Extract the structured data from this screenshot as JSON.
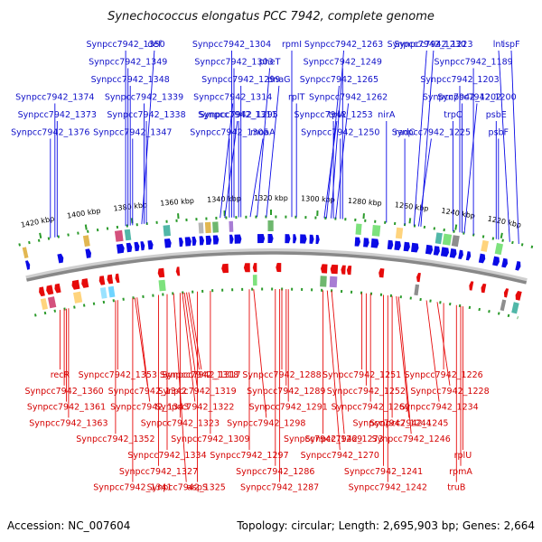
{
  "header": {
    "title": "Synechococcus elongatus PCC 7942, complete genome"
  },
  "footer": {
    "accession": "Accession: NC_007604",
    "summary": "Topology: circular; Length: 2,695,903 bp; Genes: 2,664"
  },
  "colors": {
    "forward": "#0a0ae6",
    "reverse": "#e60a0a",
    "backbone": "#888888",
    "tick_dots": "#2a9a2a"
  },
  "scale": {
    "unit": "kbp",
    "ticks": [
      {
        "pos": 1220,
        "label": "1220 kbp"
      },
      {
        "pos": 1240,
        "label": "1240 kbp"
      },
      {
        "pos": 1260,
        "label": "1260 kbp"
      },
      {
        "pos": 1280,
        "label": "1280 kbp"
      },
      {
        "pos": 1300,
        "label": "1300 kbp"
      },
      {
        "pos": 1320,
        "label": "1320 kbp"
      },
      {
        "pos": 1340,
        "label": "1340 kbp"
      },
      {
        "pos": 1360,
        "label": "1360 kbp"
      },
      {
        "pos": 1380,
        "label": "1380 kbp"
      },
      {
        "pos": 1400,
        "label": "1400 kbp"
      },
      {
        "pos": 1420,
        "label": "1420 kbp"
      }
    ]
  },
  "upper_labels": [
    {
      "text": "Synpcc7942_1350",
      "pos": 1383
    },
    {
      "text": "Synpcc7942_1349",
      "pos": 1382
    },
    {
      "text": "Synpcc7942_1348",
      "pos": 1381
    },
    {
      "text": "Synpcc7942_1339",
      "pos": 1375
    },
    {
      "text": "Synpcc7942_1338",
      "pos": 1374
    },
    {
      "text": "Synpcc7942_1347",
      "pos": 1380
    },
    {
      "text": "def",
      "pos": 1376
    },
    {
      "text": "Synpcc7942_1374",
      "pos": 1414
    },
    {
      "text": "Synpcc7942_1373",
      "pos": 1413
    },
    {
      "text": "Synpcc7942_1376",
      "pos": 1416
    },
    {
      "text": "Synpcc7942_1295",
      "pos": 1334
    },
    {
      "text": "Synpcc7942_1305",
      "pos": 1338
    },
    {
      "text": "Synpcc7942_1304",
      "pos": 1337
    },
    {
      "text": "Synpcc7942_1303",
      "pos": 1336
    },
    {
      "text": "Synpcc7942_1299",
      "pos": 1333
    },
    {
      "text": "Synpcc7942_1314",
      "pos": 1342
    },
    {
      "text": "Synpcc7942_1311",
      "pos": 1340
    },
    {
      "text": "moaA",
      "pos": 1329
    },
    {
      "text": "rpmI",
      "pos": 1311
    },
    {
      "text": "pheT",
      "pos": 1326
    },
    {
      "text": "dnaG",
      "pos": 1322
    },
    {
      "text": "rplT",
      "pos": 1309
    },
    {
      "text": "Synpcc7942_1253",
      "pos": 1293
    },
    {
      "text": "Synpcc7942_1250",
      "pos": 1290
    },
    {
      "text": "Synpcc7942_1249",
      "pos": 1289
    },
    {
      "text": "Synpcc7942_1265",
      "pos": 1296
    },
    {
      "text": "Synpcc7942_1263",
      "pos": 1294
    },
    {
      "text": "Synpcc7942_1262",
      "pos": 1292
    },
    {
      "text": "tpiA",
      "pos": 1297
    },
    {
      "text": "radC",
      "pos": 1262
    },
    {
      "text": "nirA",
      "pos": 1270
    },
    {
      "text": "Synpcc7942_1189",
      "pos": 1232
    },
    {
      "text": "Synpcc7942_1203",
      "pos": 1238
    },
    {
      "text": "Synpcc7942_1202",
      "pos": 1237
    },
    {
      "text": "Synpcc7942_1230",
      "pos": 1258
    },
    {
      "text": "Synpcc7942_1225",
      "pos": 1256
    },
    {
      "text": "Synpcc7942_1223",
      "pos": 1255
    },
    {
      "text": "psbE",
      "pos": 1222
    },
    {
      "text": "psbF",
      "pos": 1221
    },
    {
      "text": "Synpcc7942_1200",
      "pos": 1236
    },
    {
      "text": "trpC",
      "pos": 1241
    },
    {
      "text": "lnt",
      "pos": 1216
    },
    {
      "text": "ispF",
      "pos": 1212
    }
  ],
  "lower_labels": [
    {
      "text": "recR",
      "pos": 1418
    },
    {
      "text": "Synpcc7942_1360",
      "pos": 1416
    },
    {
      "text": "Synpcc7942_1361",
      "pos": 1415
    },
    {
      "text": "Synpcc7942_1363",
      "pos": 1414
    },
    {
      "text": "Synpcc7942_1352",
      "pos": 1392
    },
    {
      "text": "Synpcc7942_1334",
      "pos": 1368
    },
    {
      "text": "Synpcc7942_1327",
      "pos": 1372
    },
    {
      "text": "Synpcc7942_1341",
      "pos": 1384
    },
    {
      "text": "Synpcc7942_1353",
      "pos": 1391
    },
    {
      "text": "Synpcc7942_1342",
      "pos": 1383
    },
    {
      "text": "Synpcc7942_1343",
      "pos": 1382
    },
    {
      "text": "Synpcc7942_1323",
      "pos": 1362
    },
    {
      "text": "Synpcc7942_1309",
      "pos": 1348
    },
    {
      "text": "aspS",
      "pos": 1354
    },
    {
      "text": "Synpcc7942_1317",
      "pos": 1358
    },
    {
      "text": "Synpcc7942_1325",
      "pos": 1365
    },
    {
      "text": "Synpcc7942_1318",
      "pos": 1359
    },
    {
      "text": "Synpcc7942_1319",
      "pos": 1360
    },
    {
      "text": "Synpcc7942_1322",
      "pos": 1361
    },
    {
      "text": "Synpcc7942_1297",
      "pos": 1330
    },
    {
      "text": "Synpcc7942_1286",
      "pos": 1318
    },
    {
      "text": "Synpcc7942_1287",
      "pos": 1316
    },
    {
      "text": "Synpcc7942_1288",
      "pos": 1315
    },
    {
      "text": "Synpcc7942_1298",
      "pos": 1328
    },
    {
      "text": "Synpcc7942_1289",
      "pos": 1313
    },
    {
      "text": "Synpcc7942_1291",
      "pos": 1312
    },
    {
      "text": "Synpcc7942_1269",
      "pos": 1296
    },
    {
      "text": "Synpcc7942_1270",
      "pos": 1294
    },
    {
      "text": "Synpcc7942_1273",
      "pos": 1292
    },
    {
      "text": "Synpcc7942_1241",
      "pos": 1268
    },
    {
      "text": "Synpcc7942_1242",
      "pos": 1266
    },
    {
      "text": "Synpcc7942_1251",
      "pos": 1278
    },
    {
      "text": "Synpcc7942_1252",
      "pos": 1276
    },
    {
      "text": "Synpcc7942_1260",
      "pos": 1274
    },
    {
      "text": "Synpcc7942_1244",
      "pos": 1264
    },
    {
      "text": "Synpcc7942_1245",
      "pos": 1262
    },
    {
      "text": "Synpcc7942_1246",
      "pos": 1261
    },
    {
      "text": "rplU",
      "pos": 1231
    },
    {
      "text": "rpmA",
      "pos": 1232
    },
    {
      "text": "truB",
      "pos": 1234
    },
    {
      "text": "Synpcc7942_1226",
      "pos": 1240
    },
    {
      "text": "Synpcc7942_1228",
      "pos": 1243
    },
    {
      "text": "Synpcc7942_1234",
      "pos": 1248
    }
  ]
}
